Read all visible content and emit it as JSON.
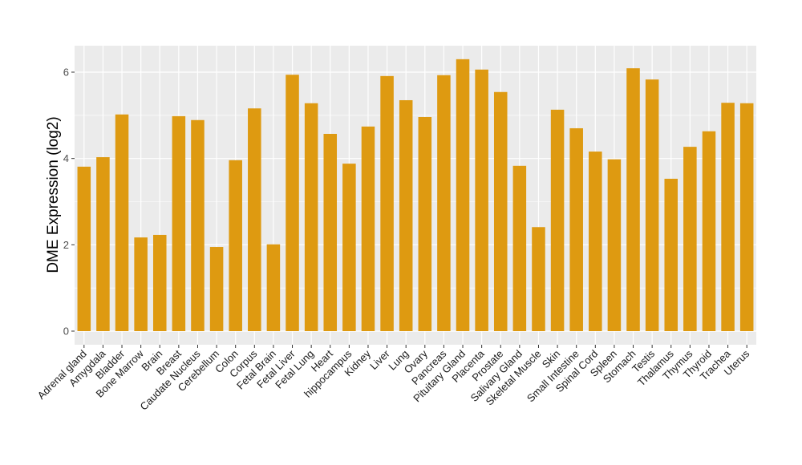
{
  "chart_data": {
    "type": "bar",
    "title": "",
    "xlabel": "",
    "ylabel": "DME Expression (log2)",
    "ylim": [
      -0.3,
      6.6
    ],
    "yticks": [
      0,
      2,
      4,
      6
    ],
    "grid": true,
    "bar_color": "#DE9A11",
    "panel_color": "#EBEBEB",
    "categories": [
      "Adrenal gland",
      "Amygdala",
      "Bladder",
      "Bone Marrow",
      "Brain",
      "Breast",
      "Caudate Nucleus",
      "Cerebellum",
      "Colon",
      "Corpus",
      "Fetal Brain",
      "Fetal Liver",
      "Fetal Lung",
      "Heart",
      "hippocampus",
      "Kidney",
      "Liver",
      "Lung",
      "Ovary",
      "Pancreas",
      "Pituitary Gland",
      "Placenta",
      "Prostate",
      "Salivary Gland",
      "Skeletal Muscle",
      "Skin",
      "Small Intestine",
      "Spinal Cord",
      "Spleen",
      "Stomach",
      "Testis",
      "Thalamus",
      "Thymus",
      "Thyroid",
      "Trachea",
      "Uterus"
    ],
    "values": [
      3.81,
      4.03,
      5.02,
      2.17,
      2.23,
      4.98,
      4.89,
      1.95,
      3.96,
      5.16,
      2.01,
      5.94,
      5.28,
      4.57,
      3.88,
      4.74,
      5.91,
      5.35,
      4.96,
      5.93,
      6.3,
      6.06,
      5.54,
      3.83,
      2.41,
      5.13,
      4.7,
      4.16,
      3.98,
      6.09,
      5.83,
      3.53,
      4.27,
      4.63,
      5.29,
      5.28
    ]
  }
}
